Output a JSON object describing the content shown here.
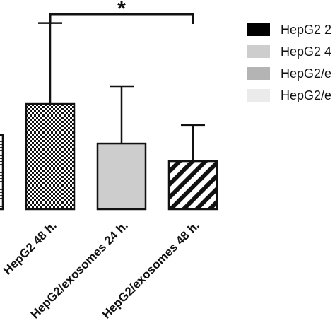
{
  "chart_data": {
    "type": "bar",
    "title": "",
    "xlabel": "",
    "ylabel": "",
    "categories": [
      "",
      "HepG2 48 h.",
      "HepG2/exosomes 24 h.",
      "HepG2/exosomes 48 h."
    ],
    "values": [
      0.88,
      1.25,
      0.78,
      0.57
    ],
    "errors": [
      0,
      0.96,
      0.68,
      0.43
    ],
    "ylim": [
      0,
      2.4
    ],
    "patterns": [
      "grid",
      "checker",
      "solid-gray",
      "diagonal-stripes"
    ],
    "legend": {
      "position": "right",
      "entries": [
        {
          "label": "HepG2 2",
          "color": "#000000"
        },
        {
          "label": "HepG2 4",
          "color": "#cdcdcd"
        },
        {
          "label": "HepG2/e",
          "color": "#b4b4b4"
        },
        {
          "label": "HepG2/e",
          "color": "#ebebeb"
        }
      ]
    },
    "significance": {
      "from": 1,
      "to": 3,
      "label": "*"
    }
  },
  "colors": {
    "bar_fill_gray": "#cdcdcd",
    "stroke": "#111111"
  }
}
